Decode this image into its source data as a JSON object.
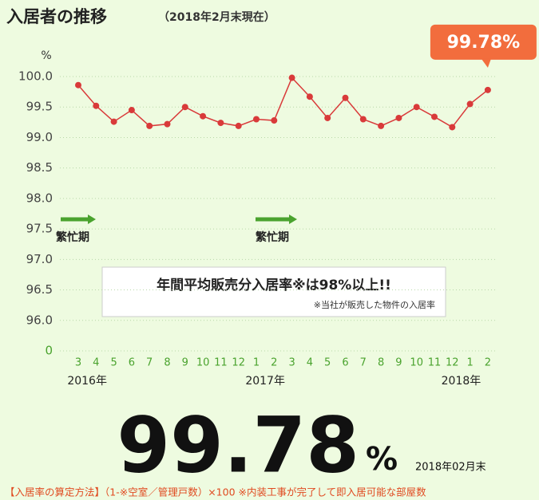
{
  "chart_data": {
    "type": "line",
    "title": "入居者の推移",
    "subtitle": "（2018年2月末現在）",
    "y_label": "%",
    "categories": [
      "3",
      "4",
      "5",
      "6",
      "7",
      "8",
      "9",
      "10",
      "11",
      "12",
      "1",
      "2",
      "3",
      "4",
      "5",
      "6",
      "7",
      "8",
      "9",
      "10",
      "11",
      "12",
      "1",
      "2"
    ],
    "year_labels": [
      "2016年",
      "2017年",
      "2018年"
    ],
    "series": [
      {
        "name": "入居率",
        "color": "#d93a3a",
        "values": [
          99.86,
          99.52,
          99.26,
          99.45,
          99.19,
          99.22,
          99.5,
          99.35,
          99.24,
          99.19,
          99.3,
          99.28,
          99.98,
          99.67,
          99.32,
          99.65,
          99.3,
          99.19,
          99.32,
          99.5,
          99.34,
          99.17,
          99.55,
          99.78
        ],
        "value_labels": [
          null,
          null,
          null,
          null,
          null,
          null,
          null,
          null,
          null,
          null,
          null,
          null,
          null,
          null,
          null,
          null,
          null,
          null,
          null,
          null,
          null,
          null,
          null,
          "99.78%"
        ]
      }
    ],
    "ylim": [
      95.5,
      100
    ],
    "yticks": [
      {
        "value": 100,
        "label": "100.0"
      },
      99.5,
      {
        "value": 99,
        "label": "99.0"
      },
      98.5,
      {
        "value": 98,
        "label": "98.0"
      },
      97.5,
      {
        "value": 97,
        "label": "97.0"
      },
      96.5,
      {
        "value": 96,
        "label": "96.0"
      },
      0
    ],
    "grid": true,
    "annotations": [
      "繁忙期",
      "繁忙期"
    ],
    "note_box": {
      "title": "年間平均販売分入居率※は98%以上!!",
      "note": "※当社が販売した物件の入居率"
    },
    "headline": {
      "value": "99.78",
      "unit": "%",
      "date": "2018年02月末"
    },
    "footer": "【入居率の算定方法】（1-※空室／管理戸数）×100 ※内装工事が完了して即入居可能な部屋数"
  }
}
